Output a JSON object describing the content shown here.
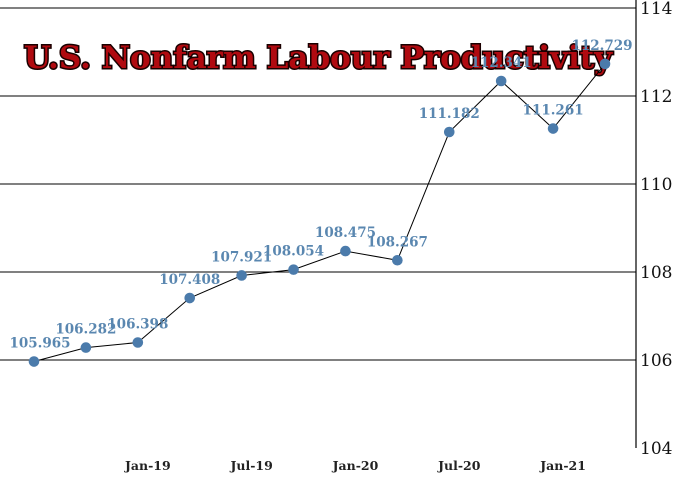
{
  "chart_data": {
    "type": "line",
    "title": "U.S. Nonfarm Labour Productivity",
    "xlabel": "",
    "ylabel": "",
    "x_tick_labels": [
      "Jan-19",
      "Jul-19",
      "Jan-20",
      "Jul-20",
      "Jan-21"
    ],
    "y_ticks": [
      104,
      106,
      108,
      110,
      112,
      114
    ],
    "ylim": [
      104,
      114
    ],
    "y_axis_side": "right",
    "grid": "horizontal",
    "series": [
      {
        "values": [
          105.965,
          106.282,
          106.398,
          107.408,
          107.921,
          108.054,
          108.475,
          108.267,
          111.182,
          112.341,
          111.261,
          112.729
        ],
        "labels": [
          "105.965",
          "106.282",
          "106.398",
          "107.408",
          "107.921",
          "108.054",
          "108.475",
          "108.267",
          "111.182",
          "112.341",
          "111.261",
          "112.729"
        ]
      }
    ],
    "colors": {
      "line": "#000000",
      "marker": "#4b7bab",
      "label": "#5a87b0",
      "title": "#b00a10",
      "grid": "#000000"
    }
  }
}
